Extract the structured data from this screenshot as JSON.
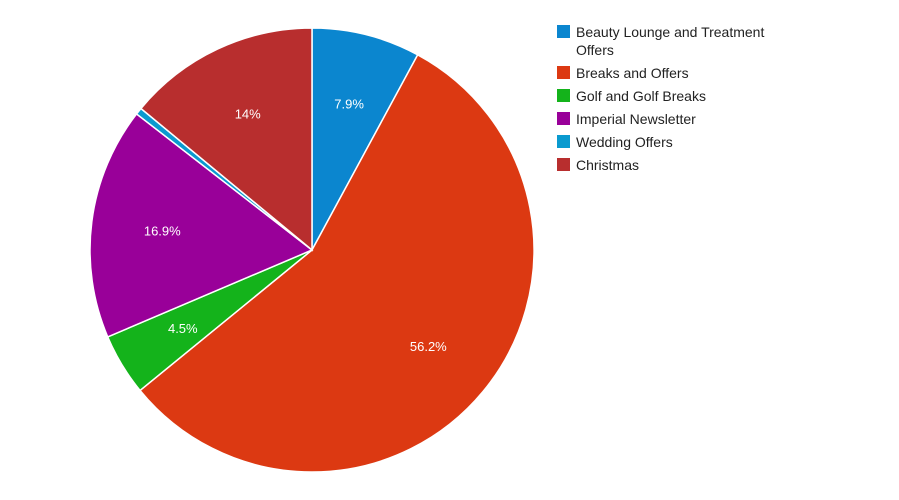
{
  "chart_data": {
    "type": "pie",
    "title": "",
    "legend_position": "right",
    "slices": [
      {
        "name": "Beauty Lounge and Treatment Offers",
        "legend_lines": [
          "Beauty Lounge and Treatment",
          "Offers"
        ],
        "value": 7.9,
        "label": "7.9%",
        "color": "#0B86CF"
      },
      {
        "name": "Breaks and Offers",
        "legend_lines": [
          "Breaks and Offers"
        ],
        "value": 56.2,
        "label": "56.2%",
        "color": "#DC3912"
      },
      {
        "name": "Golf and Golf Breaks",
        "legend_lines": [
          "Golf and Golf Breaks"
        ],
        "value": 4.5,
        "label": "4.5%",
        "color": "#14B31B"
      },
      {
        "name": "Imperial Newsletter",
        "legend_lines": [
          "Imperial Newsletter"
        ],
        "value": 16.9,
        "label": "16.9%",
        "color": "#990099"
      },
      {
        "name": "Wedding Offers",
        "legend_lines": [
          "Wedding Offers"
        ],
        "value": 0.5,
        "label": "",
        "color": "#0A9ACF"
      },
      {
        "name": "Christmas",
        "legend_lines": [
          "Christmas"
        ],
        "value": 14.0,
        "label": "14%",
        "color": "#B82E2E"
      }
    ]
  }
}
